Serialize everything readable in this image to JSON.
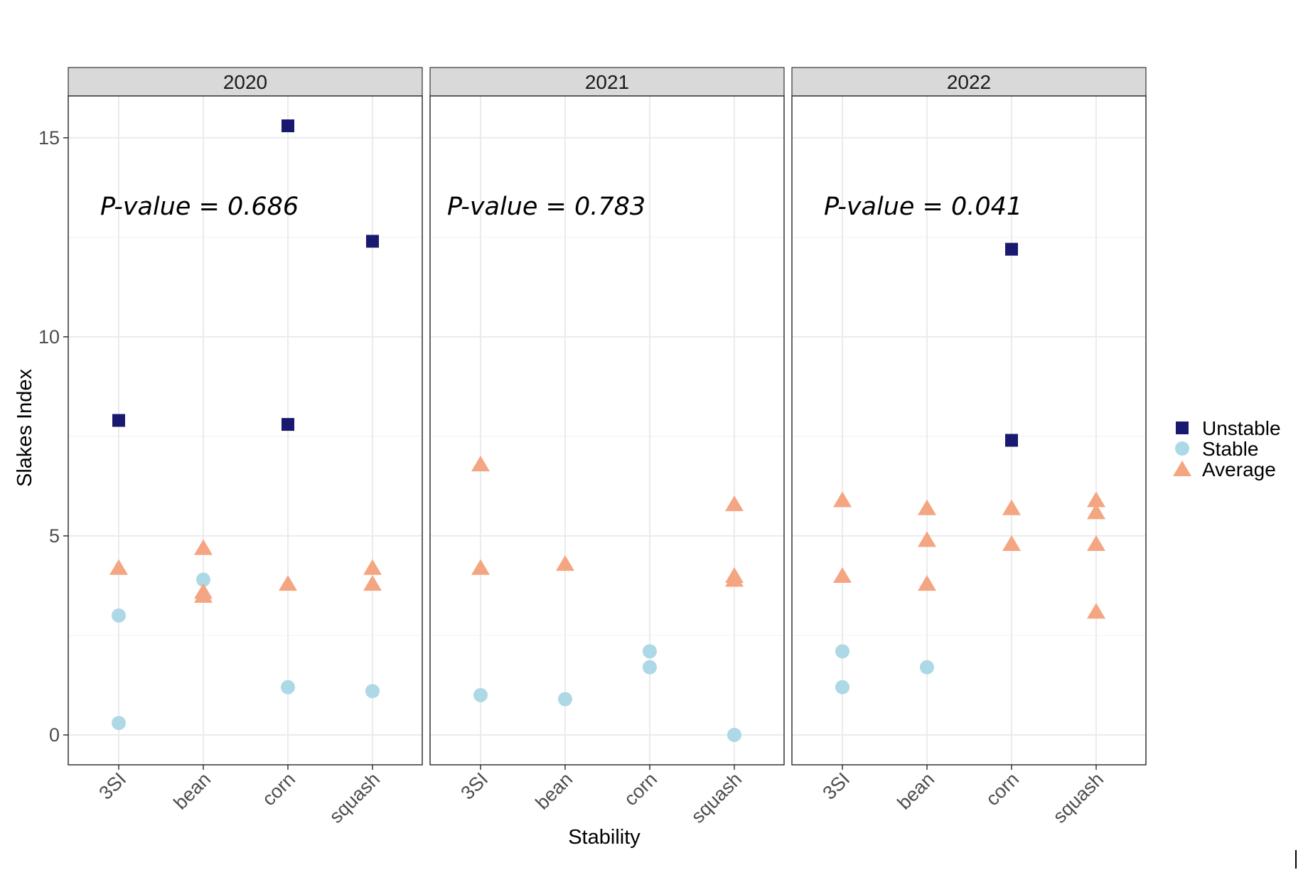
{
  "chart_data": {
    "type": "scatter",
    "xlabel": "Stability",
    "ylabel": "Slakes Index",
    "categories": [
      "3SI",
      "bean",
      "corn",
      "squash"
    ],
    "yticks": [
      0,
      5,
      10,
      15
    ],
    "ylim": [
      -0.75,
      16.05
    ],
    "grid": true,
    "legend": {
      "position": "right",
      "entries": [
        {
          "name": "Unstable",
          "color": "#191970",
          "shape": "square"
        },
        {
          "name": "Stable",
          "color": "#add8e6",
          "shape": "circle"
        },
        {
          "name": "Average",
          "color": "#f4a582",
          "shape": "triangle"
        }
      ]
    },
    "panels": [
      {
        "title": "2020",
        "annotation": "P-value = 0.686",
        "series": [
          {
            "name": "Unstable",
            "points": [
              [
                "3SI",
                7.9
              ],
              [
                "corn",
                15.3
              ],
              [
                "corn",
                7.8
              ],
              [
                "squash",
                12.4
              ]
            ]
          },
          {
            "name": "Stable",
            "points": [
              [
                "3SI",
                3.0
              ],
              [
                "3SI",
                0.3
              ],
              [
                "bean",
                3.9
              ],
              [
                "corn",
                1.2
              ],
              [
                "squash",
                1.1
              ]
            ]
          },
          {
            "name": "Average",
            "points": [
              [
                "3SI",
                4.2
              ],
              [
                "bean",
                4.7
              ],
              [
                "bean",
                3.6
              ],
              [
                "bean",
                3.5
              ],
              [
                "corn",
                3.8
              ],
              [
                "squash",
                4.2
              ],
              [
                "squash",
                3.8
              ]
            ]
          }
        ]
      },
      {
        "title": "2021",
        "annotation": "P-value = 0.783",
        "series": [
          {
            "name": "Unstable",
            "points": []
          },
          {
            "name": "Stable",
            "points": [
              [
                "3SI",
                1.0
              ],
              [
                "bean",
                0.9
              ],
              [
                "corn",
                2.1
              ],
              [
                "corn",
                1.7
              ],
              [
                "squash",
                0.0
              ]
            ]
          },
          {
            "name": "Average",
            "points": [
              [
                "3SI",
                6.8
              ],
              [
                "3SI",
                4.2
              ],
              [
                "bean",
                4.3
              ],
              [
                "squash",
                5.8
              ],
              [
                "squash",
                4.0
              ],
              [
                "squash",
                3.9
              ]
            ]
          }
        ]
      },
      {
        "title": "2022",
        "annotation": "P-value = 0.041",
        "series": [
          {
            "name": "Unstable",
            "points": [
              [
                "corn",
                12.2
              ],
              [
                "corn",
                7.4
              ]
            ]
          },
          {
            "name": "Stable",
            "points": [
              [
                "3SI",
                2.1
              ],
              [
                "3SI",
                1.2
              ],
              [
                "bean",
                1.7
              ]
            ]
          },
          {
            "name": "Average",
            "points": [
              [
                "3SI",
                5.9
              ],
              [
                "3SI",
                4.0
              ],
              [
                "bean",
                5.7
              ],
              [
                "bean",
                4.9
              ],
              [
                "bean",
                3.8
              ],
              [
                "corn",
                5.7
              ],
              [
                "corn",
                4.8
              ],
              [
                "squash",
                5.9
              ],
              [
                "squash",
                5.6
              ],
              [
                "squash",
                4.8
              ],
              [
                "squash",
                3.1
              ]
            ]
          }
        ]
      }
    ]
  }
}
